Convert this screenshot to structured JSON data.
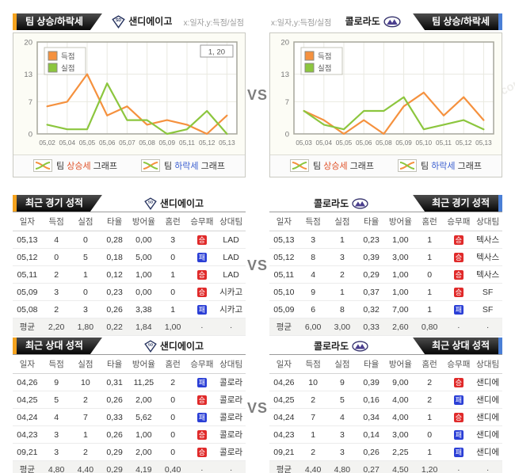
{
  "vs_label": "VS",
  "watermarks": [
    "토토박사",
    "totobaksa.com"
  ],
  "colors": {
    "accent_orange": "#f5a31e",
    "accent_blue": "#4a7fd6",
    "win_badge": "#e02a2a",
    "loss_badge": "#2b3fd6",
    "line_score": "#f5913e",
    "line_concede": "#8cc63e",
    "rise_text": "#e0532a",
    "fall_text": "#3b5fd0"
  },
  "chart_section": {
    "tab_title": "팀 상승/하락세",
    "axis_note": "x:일자,y:득점/실점",
    "left_team": "샌디에이고",
    "right_team": "콜로라도",
    "footer": {
      "rise_pre": "팀 ",
      "rise_word": "상승세",
      "rise_post": " 그래프",
      "fall_pre": "팀 ",
      "fall_word": "하락세",
      "fall_post": " 그래프"
    }
  },
  "chart_data": [
    {
      "type": "line",
      "title": "팀 상승/하락세",
      "team": "샌디에이고",
      "xlabel": "일자",
      "ylabel": "득점/실점",
      "x": [
        "05,02",
        "05,04",
        "05,05",
        "05,06",
        "05,07",
        "05,08",
        "05,09",
        "05,11",
        "05,12",
        "05,13"
      ],
      "series": [
        {
          "name": "득점",
          "color": "#f5913e",
          "values": [
            6,
            7,
            13,
            4,
            6,
            2,
            3,
            2,
            0,
            4
          ]
        },
        {
          "name": "실점",
          "color": "#8cc63e",
          "values": [
            2,
            1,
            1,
            11,
            3,
            3,
            0,
            1,
            5,
            0
          ]
        }
      ],
      "ylim": [
        0,
        20
      ],
      "yticks": [
        0,
        7,
        13,
        20
      ],
      "grid": true,
      "legend_position": "top-left",
      "tooltip": "1, 20"
    },
    {
      "type": "line",
      "title": "팀 상승/하락세",
      "team": "콜로라도",
      "xlabel": "일자",
      "ylabel": "득점/실점",
      "x": [
        "05,03",
        "05,04",
        "05,05",
        "05,06",
        "05,08",
        "05,09",
        "05,10",
        "05,11",
        "05,12",
        "05,13"
      ],
      "series": [
        {
          "name": "득점",
          "color": "#f5913e",
          "values": [
            5,
            3,
            0,
            3,
            0,
            6,
            9,
            4,
            8,
            3
          ]
        },
        {
          "name": "실점",
          "color": "#8cc63e",
          "values": [
            5,
            2,
            1,
            5,
            5,
            8,
            1,
            2,
            3,
            1
          ]
        }
      ],
      "ylim": [
        0,
        20
      ],
      "yticks": [
        0,
        7,
        13,
        20
      ],
      "grid": true,
      "legend_position": "top-left",
      "tooltip": ""
    }
  ],
  "recent_game": {
    "title": "최근 경기 성적",
    "columns": [
      "일자",
      "득점",
      "실점",
      "타율",
      "방어율",
      "홈런",
      "승무패",
      "상대팀"
    ],
    "left": {
      "team": "샌디에이고",
      "rows": [
        [
          "05,13",
          "4",
          "0",
          "0,28",
          "0,00",
          "3",
          "승",
          "LAD"
        ],
        [
          "05,12",
          "0",
          "5",
          "0,18",
          "5,00",
          "0",
          "패",
          "LAD"
        ],
        [
          "05,11",
          "2",
          "1",
          "0,12",
          "1,00",
          "1",
          "승",
          "LAD"
        ],
        [
          "05,09",
          "3",
          "0",
          "0,23",
          "0,00",
          "0",
          "승",
          "시카고"
        ],
        [
          "05,08",
          "2",
          "3",
          "0,26",
          "3,38",
          "1",
          "패",
          "시카고"
        ]
      ],
      "avg": [
        "평균",
        "2,20",
        "1,80",
        "0,22",
        "1,84",
        "1,00",
        "·",
        "·"
      ]
    },
    "right": {
      "team": "콜로라도",
      "rows": [
        [
          "05,13",
          "3",
          "1",
          "0,23",
          "1,00",
          "1",
          "승",
          "텍사스"
        ],
        [
          "05,12",
          "8",
          "3",
          "0,39",
          "3,00",
          "1",
          "승",
          "텍사스"
        ],
        [
          "05,11",
          "4",
          "2",
          "0,29",
          "1,00",
          "0",
          "승",
          "텍사스"
        ],
        [
          "05,10",
          "9",
          "1",
          "0,37",
          "1,00",
          "1",
          "승",
          "SF"
        ],
        [
          "05,09",
          "6",
          "8",
          "0,32",
          "7,00",
          "1",
          "패",
          "SF"
        ]
      ],
      "avg": [
        "평균",
        "6,00",
        "3,00",
        "0,33",
        "2,60",
        "0,80",
        "·",
        "·"
      ]
    }
  },
  "recent_vs": {
    "title": "최근 상대 성적",
    "columns": [
      "일자",
      "득점",
      "실점",
      "타율",
      "방어율",
      "홈런",
      "승무패",
      "상대팀"
    ],
    "left": {
      "team": "샌디에이고",
      "rows": [
        [
          "04,26",
          "9",
          "10",
          "0,31",
          "11,25",
          "2",
          "패",
          "콜로라"
        ],
        [
          "04,25",
          "5",
          "2",
          "0,26",
          "2,00",
          "0",
          "승",
          "콜로라"
        ],
        [
          "04,24",
          "4",
          "7",
          "0,33",
          "5,62",
          "0",
          "패",
          "콜로라"
        ],
        [
          "04,23",
          "3",
          "1",
          "0,26",
          "1,00",
          "0",
          "승",
          "콜로라"
        ],
        [
          "09,21",
          "3",
          "2",
          "0,29",
          "2,00",
          "0",
          "승",
          "콜로라"
        ]
      ],
      "avg": [
        "평균",
        "4,80",
        "4,40",
        "0,29",
        "4,19",
        "0,40",
        "·",
        "·"
      ]
    },
    "right": {
      "team": "콜로라도",
      "rows": [
        [
          "04,26",
          "10",
          "9",
          "0,39",
          "9,00",
          "2",
          "승",
          "샌디에"
        ],
        [
          "04,25",
          "2",
          "5",
          "0,16",
          "4,00",
          "2",
          "패",
          "샌디에"
        ],
        [
          "04,24",
          "7",
          "4",
          "0,34",
          "4,00",
          "1",
          "승",
          "샌디에"
        ],
        [
          "04,23",
          "1",
          "3",
          "0,14",
          "3,00",
          "0",
          "패",
          "샌디에"
        ],
        [
          "09,21",
          "2",
          "3",
          "0,26",
          "2,25",
          "1",
          "패",
          "샌디에"
        ]
      ],
      "avg": [
        "평균",
        "4,40",
        "4,80",
        "0,27",
        "4,50",
        "1,20",
        "·",
        "·"
      ]
    }
  }
}
